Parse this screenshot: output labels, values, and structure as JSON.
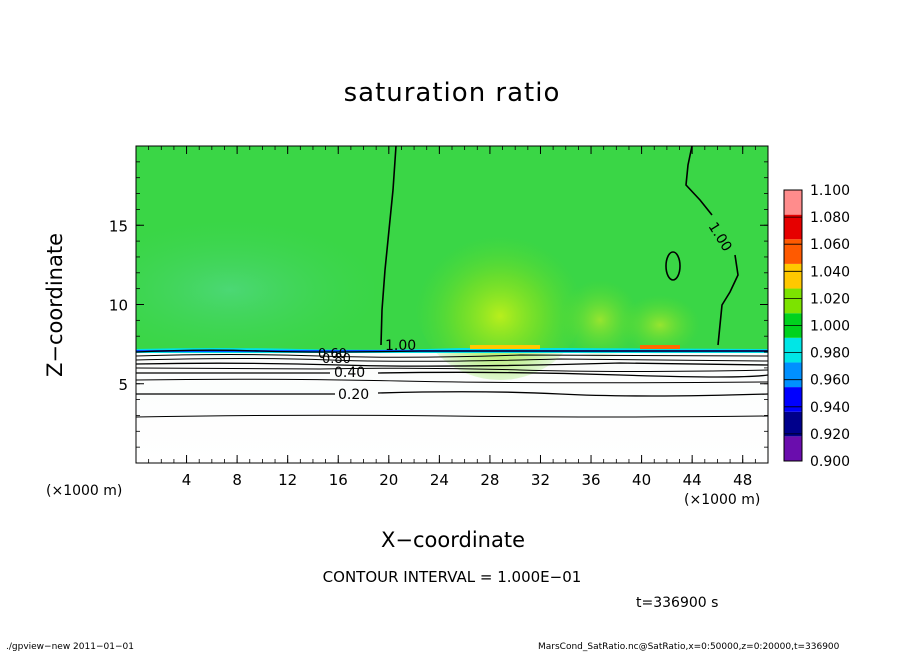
{
  "chart_data": {
    "type": "heatmap",
    "title": "saturation ratio",
    "xlabel": "X−coordinate",
    "ylabel": "Z−coordinate",
    "x_unit_left": "(×1000 m)",
    "x_unit_right": "(×1000 m)",
    "xlim": [
      0,
      50
    ],
    "ylim": [
      0,
      20
    ],
    "x_ticks": [
      "4",
      "8",
      "12",
      "16",
      "20",
      "24",
      "28",
      "32",
      "36",
      "40",
      "44",
      "48"
    ],
    "y_ticks": [
      "5",
      "10",
      "15"
    ],
    "colorbar": {
      "levels": [
        "0.900",
        "0.920",
        "0.940",
        "0.960",
        "0.980",
        "1.000",
        "1.020",
        "1.040",
        "1.060",
        "1.080",
        "1.100"
      ],
      "colors": [
        "#6a0dad",
        "#00008b",
        "#0000ff",
        "#0090ff",
        "#00e6e6",
        "#00d21e",
        "#7ce300",
        "#ffc800",
        "#ff5a00",
        "#e60000",
        "#ff8c8c"
      ]
    },
    "contour_labels": [
      "1.00",
      "1.00",
      "0.60",
      "0.80",
      "0.40",
      "0.20"
    ],
    "contour_interval": "CONTOUR INTERVAL = 1.000E−01",
    "time": "t=336900 s",
    "footer_left": "./gpview−new   2011−01−01",
    "footer_right": "MarsCond_SatRatio.nc@SatRatio,x=0:50000,z=0:20000,t=336900"
  }
}
